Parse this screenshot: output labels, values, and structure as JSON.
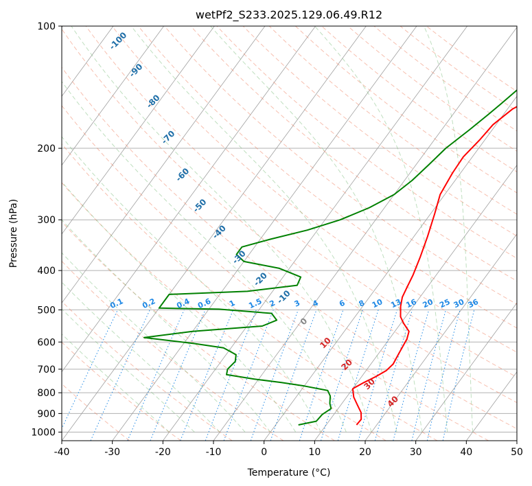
{
  "chart_data": {
    "type": "line",
    "subtype": "skew-T log-P diagram",
    "title": "wetPf2_S233.2025.129.06.49.R12",
    "xlabel": "Temperature (°C)",
    "ylabel": "Pressure (hPa)",
    "xlim": [
      -40,
      50
    ],
    "ylim": [
      1050,
      100
    ],
    "yscale": "log",
    "grid": true,
    "x_ticks": [
      -40,
      -30,
      -20,
      -10,
      0,
      10,
      20,
      30,
      40,
      50
    ],
    "y_ticks": [
      100,
      200,
      300,
      400,
      500,
      600,
      700,
      800,
      900,
      1000
    ],
    "series": [
      {
        "role": "temperature",
        "color": "#ff0000",
        "points": [
          [
            16.0,
            960
          ],
          [
            16.1,
            930
          ],
          [
            15.1,
            895
          ],
          [
            13.4,
            860
          ],
          [
            11.4,
            820
          ],
          [
            10.0,
            782
          ],
          [
            11.3,
            755
          ],
          [
            12.8,
            730
          ],
          [
            14.0,
            705
          ],
          [
            14.4,
            680
          ],
          [
            14.0,
            640
          ],
          [
            13.5,
            590
          ],
          [
            12.8,
            565
          ],
          [
            10.6,
            540
          ],
          [
            9.0,
            520
          ],
          [
            7.5,
            490
          ],
          [
            6.5,
            465
          ],
          [
            6.0,
            440
          ],
          [
            5.4,
            410
          ],
          [
            4.2,
            370
          ],
          [
            2.7,
            330
          ],
          [
            0.8,
            290
          ],
          [
            -0.9,
            260
          ],
          [
            -1.6,
            230
          ],
          [
            -1.8,
            210
          ],
          [
            -1.0,
            190
          ],
          [
            -0.6,
            175
          ],
          [
            1.0,
            160
          ],
          [
            3.5,
            150
          ],
          [
            4.5,
            140
          ],
          [
            4.0,
            130
          ],
          [
            5.5,
            120
          ],
          [
            8.0,
            110
          ],
          [
            10.0,
            100
          ]
        ]
      },
      {
        "role": "dewpoint",
        "color": "#008000",
        "points": [
          [
            4.5,
            960
          ],
          [
            7.5,
            940
          ],
          [
            7.7,
            905
          ],
          [
            8.6,
            875
          ],
          [
            7.6,
            850
          ],
          [
            6.6,
            815
          ],
          [
            5.3,
            790
          ],
          [
            0,
            770
          ],
          [
            -5,
            755
          ],
          [
            -11,
            740
          ],
          [
            -17,
            722
          ],
          [
            -17.6,
            700
          ],
          [
            -17.2,
            670
          ],
          [
            -18.0,
            645
          ],
          [
            -21.5,
            620
          ],
          [
            -28.0,
            605
          ],
          [
            -38.7,
            585
          ],
          [
            -30.0,
            565
          ],
          [
            -17.0,
            548
          ],
          [
            -15.0,
            530
          ],
          [
            -17.0,
            510
          ],
          [
            -28.0,
            498
          ],
          [
            -40.0,
            495
          ],
          [
            -40.0,
            458
          ],
          [
            -25.0,
            450
          ],
          [
            -16.0,
            435
          ],
          [
            -16.5,
            415
          ],
          [
            -22.0,
            395
          ],
          [
            -30.0,
            380
          ],
          [
            -32.5,
            365
          ],
          [
            -32.5,
            350
          ],
          [
            -28.0,
            335
          ],
          [
            -22.0,
            318
          ],
          [
            -17.0,
            300
          ],
          [
            -13.0,
            280
          ],
          [
            -10.0,
            260
          ],
          [
            -8.5,
            240
          ],
          [
            -7.5,
            220
          ],
          [
            -6.5,
            200
          ],
          [
            -4.5,
            180
          ],
          [
            -3.0,
            165
          ],
          [
            -2.0,
            155
          ],
          [
            -1.0,
            145
          ],
          [
            0.0,
            135
          ],
          [
            0.5,
            125
          ],
          [
            1.5,
            115
          ],
          [
            2.5,
            100
          ]
        ]
      }
    ],
    "dry_adiabat_labels": [
      -100,
      -90,
      -80,
      -70,
      -60,
      -50,
      -40,
      -30,
      -20,
      -10,
      0,
      10,
      20,
      30,
      40
    ],
    "mixing_ratio_labels": [
      "0.1",
      "0.2",
      "0.4",
      "0.6",
      "1",
      "1.5",
      "2",
      "3",
      "4",
      "6",
      "8",
      "10",
      "13",
      "16",
      "20",
      "25",
      "30",
      "36"
    ],
    "colors": {
      "temperature": "#ff0000",
      "dewpoint": "#008000",
      "isotherm": "#a0a0a0",
      "isobar": "#b0b0b0",
      "dry_adiabat": "#f08060",
      "moist_adiabat": "#80c080",
      "mixing_ratio": "#1e88e5",
      "adiabat_label_cold": "#1f6fa8",
      "adiabat_label_warm": "#d62728",
      "adiabat_label_zero": "#888888"
    }
  }
}
